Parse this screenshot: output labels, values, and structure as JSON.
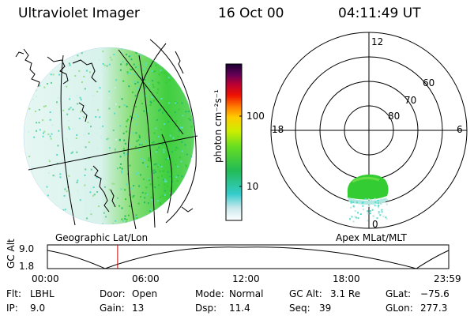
{
  "header": {
    "title": "Ultraviolet Imager",
    "date": "16 Oct 00",
    "time": "04:11:49 UT"
  },
  "left_panel": {
    "label": "Geographic Lat/Lon"
  },
  "colorbar": {
    "unit_label": "photon cm⁻²s⁻¹",
    "ticks": [
      "100",
      "10"
    ]
  },
  "right_panel": {
    "label": "Apex MLat/MLT",
    "mlt_labels": {
      "top": "12",
      "left": "18",
      "right": "6",
      "bottom": "0"
    },
    "lat_labels": [
      "60",
      "70",
      "80"
    ]
  },
  "timeline": {
    "ylabel": "GC Alt",
    "y_max": "9.0",
    "y_min": "1.8",
    "x_ticks": [
      "00:00",
      "06:00",
      "12:00",
      "18:00",
      "23:59"
    ],
    "current_time_fraction": 0.175
  },
  "info": {
    "row1": {
      "flt_label": "Flt:",
      "flt_value": "LBHL",
      "door_label": "Door:",
      "door_value": "Open",
      "mode_label": "Mode:",
      "mode_value": "Normal",
      "gcalt_label": "GC Alt:",
      "gcalt_value": "3.1 Re",
      "glat_label": "GLat:",
      "glat_value": "−75.6"
    },
    "row2": {
      "ip_label": "IP:",
      "ip_value": "9.0",
      "gain_label": "Gain:",
      "gain_value": "13",
      "dsp_label": "Dsp:",
      "dsp_value": "11.4",
      "seq_label": "Seq:",
      "seq_value": "39",
      "glon_label": "GLon:",
      "glon_value": "277.3"
    }
  },
  "colors": {
    "marker": "#c00000",
    "aurora_green": "#33cc33",
    "aurora_cyan": "#55ddcc"
  }
}
